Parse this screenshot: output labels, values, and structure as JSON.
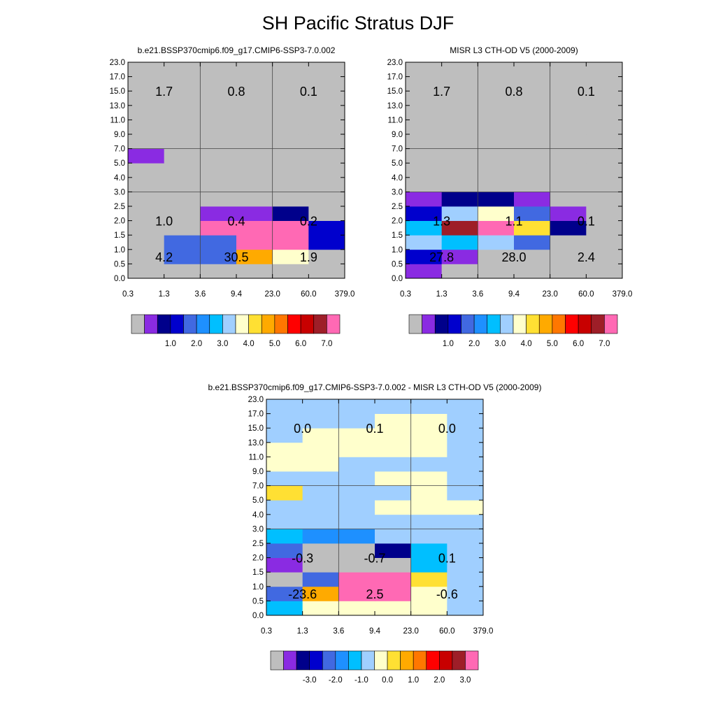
{
  "page": {
    "title": "SH Pacific Stratus DJF"
  },
  "palette": {
    "colors": [
      "#BEBEBE",
      "#8A2BE2",
      "#00008B",
      "#0000CD",
      "#4169E1",
      "#1E90FF",
      "#00BFFF",
      "#A0CFFF",
      "#FFFFCC",
      "#FFE033",
      "#FFAA00",
      "#FF7700",
      "#FF0000",
      "#C80000",
      "#9E1E28",
      "#FF69B4"
    ]
  },
  "chart_data": [
    {
      "id": "model",
      "type": "heatmap",
      "title": "b.e21.BSSP370cmip6.f09_g17.CMIP6-SSP3-7.0.002",
      "x_ticks": [
        "0.3",
        "1.3",
        "3.6",
        "9.4",
        "23.0",
        "60.0",
        "379.0"
      ],
      "y_ticks": [
        "0.0",
        "0.5",
        "1.0",
        "1.5",
        "2.0",
        "2.5",
        "3.0",
        "4.0",
        "5.0",
        "7.0",
        "9.0",
        "11.0",
        "13.0",
        "15.0",
        "17.0",
        "23.0"
      ],
      "grid": {
        "x_lines": [
          2,
          4
        ],
        "y_lines": [
          6,
          9
        ]
      },
      "cells": [
        [
          0,
          0,
          0,
          0,
          0,
          0
        ],
        [
          0,
          4,
          4,
          10,
          8,
          0
        ],
        [
          0,
          4,
          4,
          15,
          15,
          3
        ],
        [
          0,
          0,
          15,
          15,
          15,
          3
        ],
        [
          0,
          0,
          1,
          1,
          2,
          0
        ],
        [
          0,
          0,
          0,
          0,
          0,
          0
        ],
        [
          0,
          0,
          0,
          0,
          0,
          0
        ],
        [
          0,
          0,
          0,
          0,
          0,
          0
        ],
        [
          1,
          0,
          0,
          0,
          0,
          0
        ],
        [
          0,
          0,
          0,
          0,
          0,
          0
        ],
        [
          0,
          0,
          0,
          0,
          0,
          0
        ],
        [
          0,
          0,
          0,
          0,
          0,
          0
        ],
        [
          0,
          0,
          0,
          0,
          0,
          0
        ],
        [
          0,
          0,
          0,
          0,
          0,
          0
        ],
        [
          0,
          0,
          0,
          0,
          0,
          0
        ]
      ],
      "annotations": [
        {
          "text": "4.2",
          "x": 1,
          "y": 1.5
        },
        {
          "text": "30.5",
          "x": 3,
          "y": 1.5
        },
        {
          "text": "1.9",
          "x": 5,
          "y": 1.5
        },
        {
          "text": "1.0",
          "x": 1,
          "y": 4.0
        },
        {
          "text": "0.4",
          "x": 3,
          "y": 4.0
        },
        {
          "text": "0.2",
          "x": 5,
          "y": 4.0
        },
        {
          "text": "1.7",
          "x": 1,
          "y": 13.0
        },
        {
          "text": "0.8",
          "x": 3,
          "y": 13.0
        },
        {
          "text": "0.1",
          "x": 5,
          "y": 13.0
        }
      ],
      "colorbar": {
        "labels": [
          "1.0",
          "2.0",
          "3.0",
          "4.0",
          "5.0",
          "6.0",
          "7.0"
        ]
      }
    },
    {
      "id": "obs",
      "type": "heatmap",
      "title": "MISR L3 CTH-OD V5 (2000-2009)",
      "x_ticks": [
        "0.3",
        "1.3",
        "3.6",
        "9.4",
        "23.0",
        "60.0",
        "379.0"
      ],
      "y_ticks": [
        "0.0",
        "0.5",
        "1.0",
        "1.5",
        "2.0",
        "2.5",
        "3.0",
        "4.0",
        "5.0",
        "7.0",
        "9.0",
        "11.0",
        "13.0",
        "15.0",
        "17.0",
        "23.0"
      ],
      "grid": {
        "x_lines": [
          2,
          4
        ],
        "y_lines": [
          6,
          9
        ]
      },
      "cells": [
        [
          1,
          0,
          0,
          0,
          0,
          0
        ],
        [
          3,
          1,
          0,
          0,
          0,
          0
        ],
        [
          7,
          6,
          7,
          4,
          0,
          0
        ],
        [
          6,
          14,
          15,
          9,
          2,
          0
        ],
        [
          3,
          7,
          8,
          4,
          1,
          0
        ],
        [
          1,
          2,
          2,
          1,
          0,
          0
        ],
        [
          0,
          0,
          0,
          0,
          0,
          0
        ],
        [
          0,
          0,
          0,
          0,
          0,
          0
        ],
        [
          0,
          0,
          0,
          0,
          0,
          0
        ],
        [
          0,
          0,
          0,
          0,
          0,
          0
        ],
        [
          0,
          0,
          0,
          0,
          0,
          0
        ],
        [
          0,
          0,
          0,
          0,
          0,
          0
        ],
        [
          0,
          0,
          0,
          0,
          0,
          0
        ],
        [
          0,
          0,
          0,
          0,
          0,
          0
        ],
        [
          0,
          0,
          0,
          0,
          0,
          0
        ]
      ],
      "annotations": [
        {
          "text": "27.8",
          "x": 1,
          "y": 1.5
        },
        {
          "text": "28.0",
          "x": 3,
          "y": 1.5
        },
        {
          "text": "2.4",
          "x": 5,
          "y": 1.5
        },
        {
          "text": "1.3",
          "x": 1,
          "y": 4.0
        },
        {
          "text": "1.1",
          "x": 3,
          "y": 4.0
        },
        {
          "text": "0.1",
          "x": 5,
          "y": 4.0
        },
        {
          "text": "1.7",
          "x": 1,
          "y": 13.0
        },
        {
          "text": "0.8",
          "x": 3,
          "y": 13.0
        },
        {
          "text": "0.1",
          "x": 5,
          "y": 13.0
        }
      ],
      "colorbar": {
        "labels": [
          "1.0",
          "2.0",
          "3.0",
          "4.0",
          "5.0",
          "6.0",
          "7.0"
        ]
      }
    },
    {
      "id": "diff",
      "type": "heatmap",
      "title": "b.e21.BSSP370cmip6.f09_g17.CMIP6-SSP3-7.0.002 - MISR L3 CTH-OD V5 (2000-2009)",
      "x_ticks": [
        "0.3",
        "1.3",
        "3.6",
        "9.4",
        "23.0",
        "60.0",
        "379.0"
      ],
      "y_ticks": [
        "0.0",
        "0.5",
        "1.0",
        "1.5",
        "2.0",
        "2.5",
        "3.0",
        "4.0",
        "5.0",
        "7.0",
        "9.0",
        "11.0",
        "13.0",
        "15.0",
        "17.0",
        "23.0"
      ],
      "grid": {
        "x_lines": [
          2,
          4
        ],
        "y_lines": [
          6,
          9
        ]
      },
      "cells": [
        [
          6,
          8,
          8,
          8,
          8,
          7
        ],
        [
          4,
          10,
          15,
          15,
          8,
          7
        ],
        [
          0,
          4,
          15,
          15,
          9,
          7
        ],
        [
          1,
          0,
          0,
          0,
          6,
          7
        ],
        [
          4,
          0,
          0,
          2,
          6,
          7
        ],
        [
          6,
          5,
          5,
          7,
          7,
          7
        ],
        [
          7,
          7,
          7,
          7,
          7,
          7
        ],
        [
          7,
          7,
          7,
          8,
          8,
          8
        ],
        [
          9,
          7,
          7,
          7,
          8,
          7
        ],
        [
          7,
          7,
          7,
          8,
          8,
          7
        ],
        [
          8,
          8,
          7,
          7,
          7,
          7
        ],
        [
          8,
          8,
          8,
          8,
          8,
          7
        ],
        [
          7,
          8,
          8,
          8,
          8,
          7
        ],
        [
          7,
          7,
          7,
          8,
          8,
          7
        ],
        [
          7,
          7,
          7,
          7,
          7,
          7
        ]
      ],
      "annotations": [
        {
          "text": "-23.6",
          "x": 1,
          "y": 1.5
        },
        {
          "text": "2.5",
          "x": 3,
          "y": 1.5
        },
        {
          "text": "-0.6",
          "x": 5,
          "y": 1.5
        },
        {
          "text": "-0.3",
          "x": 1,
          "y": 4.0
        },
        {
          "text": "-0.7",
          "x": 3,
          "y": 4.0
        },
        {
          "text": "0.1",
          "x": 5,
          "y": 4.0
        },
        {
          "text": "0.0",
          "x": 1,
          "y": 13.0
        },
        {
          "text": "0.1",
          "x": 3,
          "y": 13.0
        },
        {
          "text": "0.0",
          "x": 5,
          "y": 13.0
        }
      ],
      "colorbar": {
        "labels": [
          "-3.0",
          "-2.0",
          "-1.0",
          "0.0",
          "1.0",
          "2.0",
          "3.0"
        ]
      }
    }
  ]
}
